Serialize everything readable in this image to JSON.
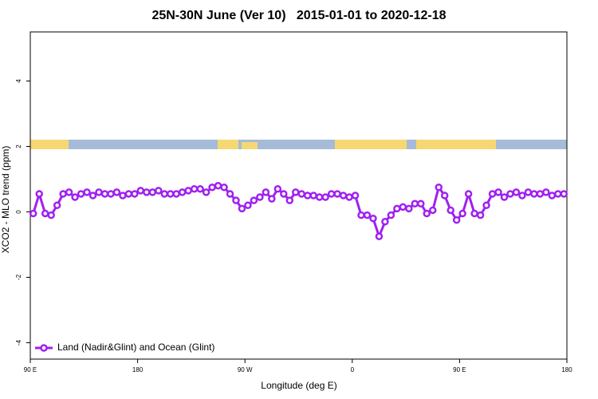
{
  "chart_data": {
    "type": "line",
    "title": "25N-30N June (Ver 10)   2015-01-01 to 2020-12-18",
    "x_label": "Longitude (deg E)",
    "y_label": "XCO2 - MLO trend (ppm)",
    "xlim": [
      90,
      540
    ],
    "xticks": [
      {
        "value": 90,
        "label": "90 E"
      },
      {
        "value": 180,
        "label": "180"
      },
      {
        "value": 270,
        "label": "90 W"
      },
      {
        "value": 360,
        "label": "0"
      },
      {
        "value": 450,
        "label": "90 E"
      },
      {
        "value": 540,
        "label": "180"
      }
    ],
    "ylim": [
      -4.5,
      5.5
    ],
    "yticks": [
      -4,
      -2,
      0,
      2,
      4
    ],
    "legend": "bottom-left",
    "x": [
      92.5,
      97.5,
      102.5,
      107.5,
      112.5,
      117.5,
      122.5,
      127.5,
      132.5,
      137.5,
      142.5,
      147.5,
      152.5,
      157.5,
      162.5,
      167.5,
      172.5,
      177.5,
      182.5,
      187.5,
      192.5,
      197.5,
      202.5,
      207.5,
      212.5,
      217.5,
      222.5,
      227.5,
      232.5,
      237.5,
      242.5,
      247.5,
      252.5,
      257.5,
      262.5,
      267.5,
      272.5,
      277.5,
      282.5,
      287.5,
      292.5,
      297.5,
      302.5,
      307.5,
      312.5,
      317.5,
      322.5,
      327.5,
      332.5,
      337.5,
      342.5,
      347.5,
      352.5,
      357.5,
      362.5,
      367.5,
      372.5,
      377.5,
      382.5,
      387.5,
      392.5,
      397.5,
      402.5,
      407.5,
      412.5,
      417.5,
      422.5,
      427.5,
      432.5,
      437.5,
      442.5,
      447.5,
      452.5,
      457.5,
      462.5,
      467.5,
      472.5,
      477.5,
      482.5,
      487.5,
      492.5,
      497.5,
      502.5,
      507.5,
      512.5,
      517.5,
      522.5,
      527.5,
      532.5,
      537.5
    ],
    "series": [
      {
        "name": "Land (Nadir&Glint) and Ocean (Glint)",
        "color": "#a020f0",
        "values": [
          -0.05,
          0.55,
          -0.05,
          -0.1,
          0.2,
          0.55,
          0.6,
          0.45,
          0.55,
          0.6,
          0.5,
          0.6,
          0.55,
          0.55,
          0.6,
          0.5,
          0.55,
          0.55,
          0.65,
          0.6,
          0.6,
          0.65,
          0.55,
          0.55,
          0.55,
          0.6,
          0.65,
          0.7,
          0.7,
          0.6,
          0.75,
          0.8,
          0.75,
          0.55,
          0.35,
          0.1,
          0.2,
          0.35,
          0.45,
          0.6,
          0.4,
          0.7,
          0.55,
          0.35,
          0.6,
          0.55,
          0.5,
          0.5,
          0.45,
          0.45,
          0.55,
          0.55,
          0.5,
          0.45,
          0.5,
          -0.1,
          -0.1,
          -0.2,
          -0.75,
          -0.3,
          -0.1,
          0.1,
          0.15,
          0.1,
          0.25,
          0.25,
          -0.05,
          0.05,
          0.75,
          0.5,
          0.05,
          -0.25,
          -0.05,
          0.55,
          -0.05,
          -0.1,
          0.2,
          0.55,
          0.6,
          0.45,
          0.55,
          0.6,
          0.5,
          0.6,
          0.55,
          0.55,
          0.6,
          0.5,
          0.55,
          0.55
        ]
      }
    ]
  }
}
